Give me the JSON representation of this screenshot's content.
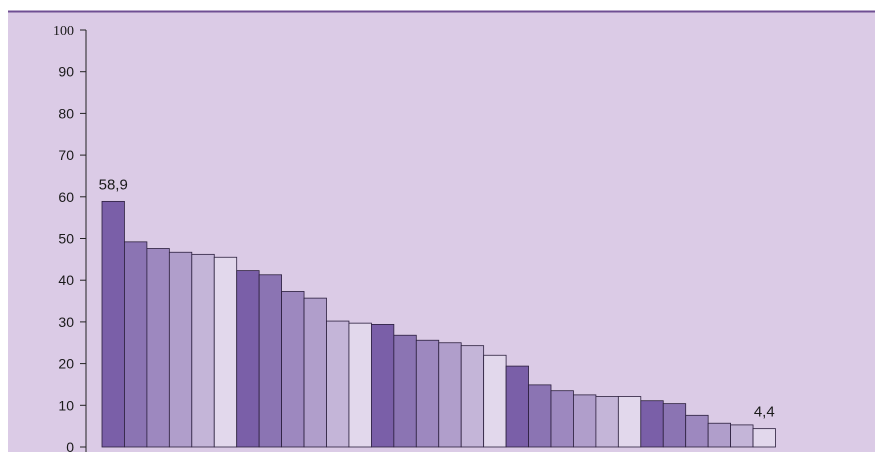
{
  "chart_data": {
    "type": "bar",
    "title": "",
    "xlabel": "",
    "ylabel": "",
    "ylim": [
      0,
      100
    ],
    "yticks": [
      "0",
      "10",
      "20",
      "30",
      "40",
      "50",
      "60",
      "70",
      "80",
      "90",
      "100"
    ],
    "grid": false,
    "legend": "none",
    "values": [
      58.9,
      49.2,
      47.6,
      46.7,
      46.2,
      45.5,
      42.3,
      41.3,
      37.3,
      35.7,
      30.2,
      29.7,
      29.4,
      26.8,
      25.6,
      25.0,
      24.3,
      22.0,
      19.4,
      14.9,
      13.5,
      12.5,
      12.1,
      12.1,
      11.1,
      10.4,
      7.6,
      5.7,
      5.3,
      4.4
    ],
    "data_labels": [
      {
        "index": 0,
        "text": "58,9"
      },
      {
        "index": 29,
        "text": "4,4"
      }
    ],
    "bar_colors": [
      "#7a5fa8",
      "#8b74b3",
      "#9d88bf",
      "#b09ecb",
      "#c4b5d8",
      "#e2d8ec"
    ],
    "colors": {
      "background": "#dbcbe6",
      "top_rule": "#6f4f93",
      "axis": "#222222"
    }
  }
}
